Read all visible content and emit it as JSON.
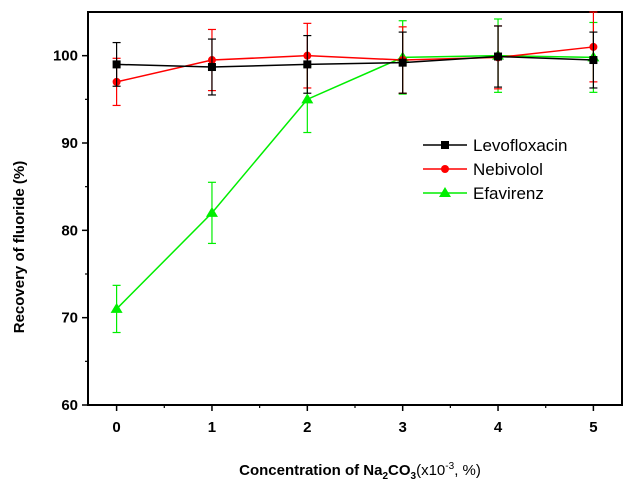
{
  "chart_data": {
    "type": "line",
    "title": "",
    "ylabel": "Recovery of fluoride (%)",
    "xlabel": {
      "prefix": "Concentration of Na",
      "sub1": "2",
      "mid": "CO",
      "sub2": "3",
      "suffix": "(x10",
      "sup": "-3",
      "end": ", %)"
    },
    "x": [
      0,
      1,
      2,
      3,
      4,
      5
    ],
    "x_ticks": [
      "0",
      "1",
      "2",
      "3",
      "4",
      "5"
    ],
    "y_ticks": [
      "60",
      "70",
      "80",
      "90",
      "100"
    ],
    "xlim": [
      -0.3,
      5.3
    ],
    "ylim": [
      60,
      105
    ],
    "grid": false,
    "legend_position": "right",
    "series": [
      {
        "name": "Levofloxacin",
        "color": "#000000",
        "marker": "square",
        "values": [
          99.0,
          98.7,
          99.0,
          99.2,
          99.9,
          99.5
        ],
        "errors": [
          2.5,
          3.2,
          3.3,
          3.5,
          3.5,
          3.2
        ]
      },
      {
        "name": "Nebivolol",
        "color": "#ff0000",
        "marker": "circle",
        "values": [
          97.0,
          99.5,
          100.0,
          99.5,
          99.8,
          101.0
        ],
        "errors": [
          2.7,
          3.5,
          3.7,
          3.8,
          3.6,
          4.0
        ]
      },
      {
        "name": "Efavirenz",
        "color": "#00ee00",
        "marker": "triangle",
        "values": [
          71.0,
          82.0,
          95.0,
          99.8,
          100.0,
          99.8
        ],
        "errors": [
          2.7,
          3.5,
          3.8,
          4.2,
          4.2,
          4.0
        ]
      }
    ]
  }
}
